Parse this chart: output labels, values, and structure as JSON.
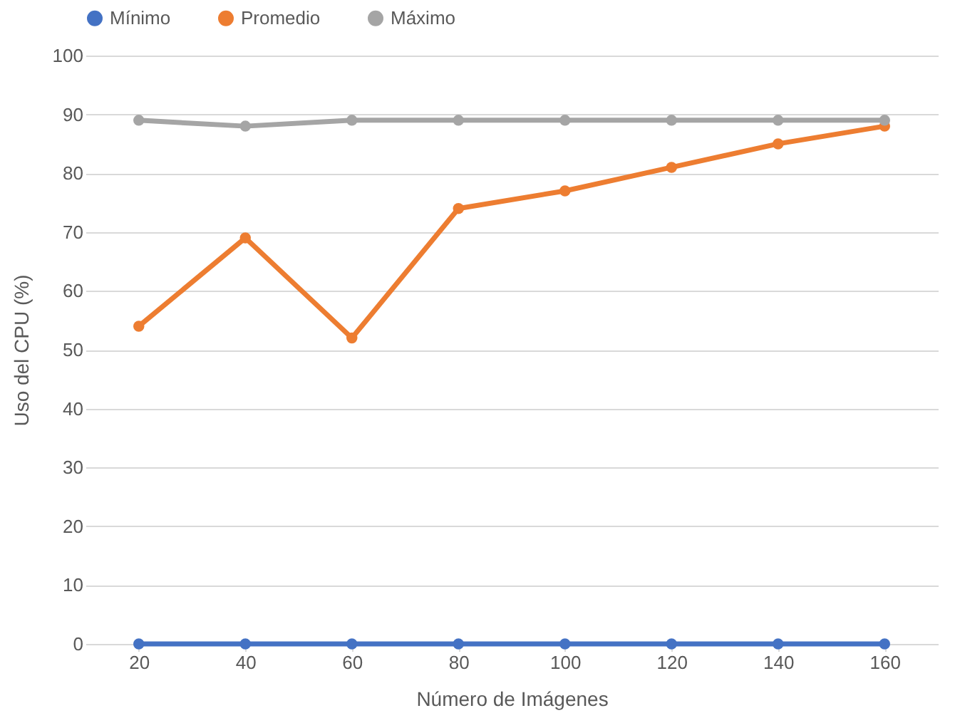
{
  "chart_data": {
    "type": "line",
    "xlabel": "Número de Imágenes",
    "ylabel": "Uso del CPU (%)",
    "categories": [
      "20",
      "40",
      "60",
      "80",
      "100",
      "120",
      "140",
      "160"
    ],
    "series": [
      {
        "name": "Mínimo",
        "color": "#4472c4",
        "values": [
          0,
          0,
          0,
          0,
          0,
          0,
          0,
          0
        ]
      },
      {
        "name": "Promedio",
        "color": "#ed7d31",
        "values": [
          54,
          69,
          52,
          74,
          77,
          81,
          85,
          88
        ]
      },
      {
        "name": "Máximo",
        "color": "#a5a5a5",
        "values": [
          89,
          88,
          89,
          89,
          89,
          89,
          89,
          89
        ]
      }
    ],
    "ylim": [
      0,
      100
    ],
    "yticks": [
      0,
      10,
      20,
      30,
      40,
      50,
      60,
      70,
      80,
      90,
      100
    ],
    "grid": "y",
    "legend": "top",
    "marker": "circle",
    "line_style": "solid"
  }
}
